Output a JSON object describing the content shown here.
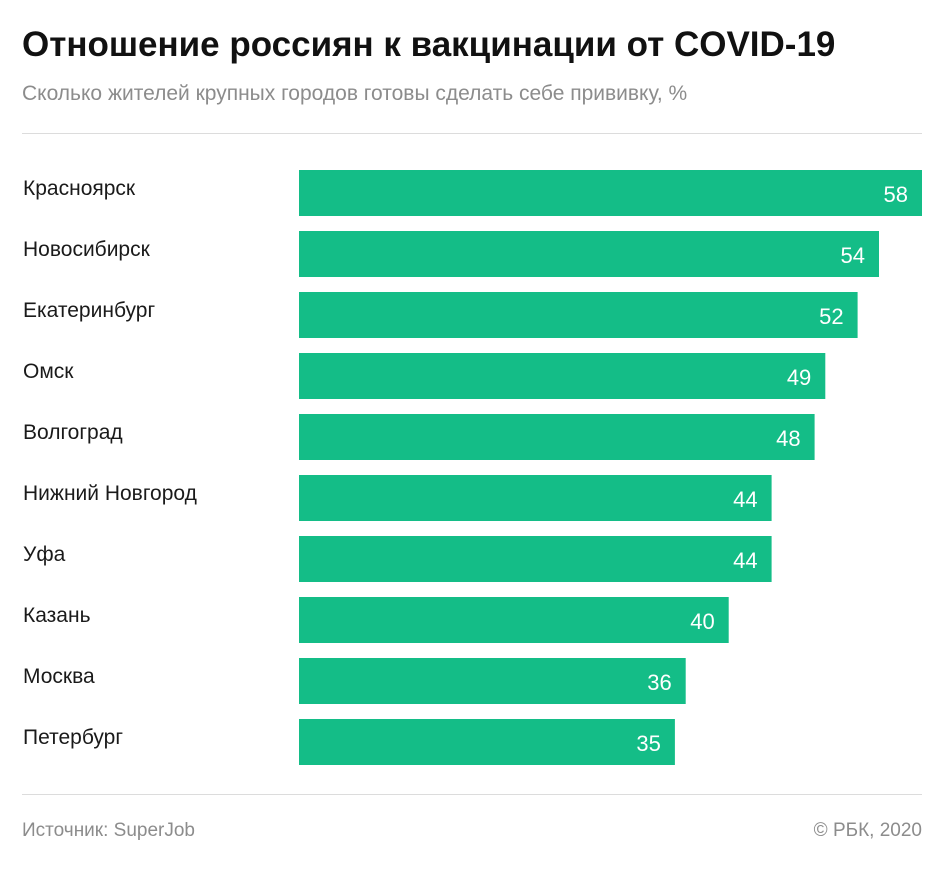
{
  "header": {
    "title": "Отношение россиян к вакцинации от COVID-19",
    "subtitle": "Сколько жителей крупных городов готовы сделать себе прививку, %"
  },
  "footer": {
    "source": "Источник: SuperJob",
    "copyright": "© РБК, 2020"
  },
  "colors": {
    "bar": "#14bd87",
    "bar_label": "#ffffff",
    "category_label": "#1a1a1a"
  },
  "chart_data": {
    "type": "bar",
    "orientation": "horizontal",
    "title": "Отношение россиян к вакцинации от COVID-19",
    "subtitle": "Сколько жителей крупных городов готовы сделать себе прививку, %",
    "categories": [
      "Красноярск",
      "Новосибирск",
      "Екатеринбург",
      "Омск",
      "Волгоград",
      "Нижний Новгород",
      "Уфа",
      "Казань",
      "Москва",
      "Петербург"
    ],
    "values": [
      58,
      54,
      52,
      49,
      48,
      44,
      44,
      40,
      36,
      35
    ],
    "xlim": [
      0,
      58
    ],
    "grid": false,
    "data_labels": "inside-end"
  }
}
